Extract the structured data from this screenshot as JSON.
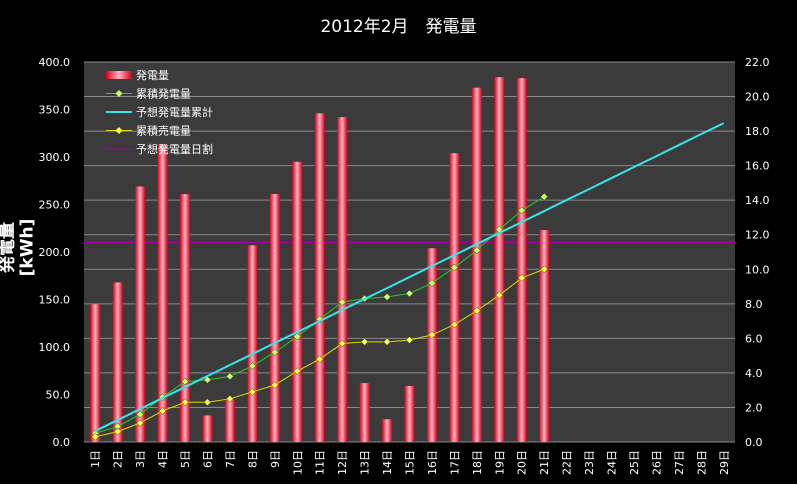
{
  "chart_data": {
    "type": "bar",
    "title": "2012年2月　発電量",
    "ylabel": "発電量[kWh]",
    "ylim": [
      0,
      400
    ],
    "y2lim": [
      0,
      22
    ],
    "y_ticks": [
      "0.0",
      "50.0",
      "100.0",
      "150.0",
      "200.0",
      "250.0",
      "300.0",
      "350.0",
      "400.0"
    ],
    "y2_ticks": [
      "0.0",
      "2.0",
      "4.0",
      "6.0",
      "8.0",
      "10.0",
      "12.0",
      "14.0",
      "16.0",
      "18.0",
      "20.0",
      "22.0"
    ],
    "grid": true,
    "legend_position": "top-left",
    "categories": [
      "1日",
      "2日",
      "3日",
      "4日",
      "5日",
      "6日",
      "7日",
      "8日",
      "9日",
      "10日",
      "11日",
      "12日",
      "13日",
      "14日",
      "15日",
      "16日",
      "17日",
      "18日",
      "19日",
      "20日",
      "21日",
      "22日",
      "23日",
      "24日",
      "25日",
      "26日",
      "27日",
      "28日",
      "29日"
    ],
    "series": [
      {
        "name": "発電量",
        "type": "bar",
        "axis": "left",
        "color": "#ff2040",
        "values": [
          145,
          168,
          269,
          313,
          261,
          28,
          45,
          207,
          261,
          295,
          346,
          342,
          62,
          24,
          59,
          204,
          304,
          373,
          384,
          383,
          223,
          null,
          null,
          null,
          null,
          null,
          null,
          null,
          null
        ]
      },
      {
        "name": "累積発電量",
        "type": "line-marker",
        "axis": "right",
        "color": "#22cc22",
        "marker_color": "#ccff66",
        "values": [
          0.5,
          0.9,
          1.6,
          2.6,
          3.5,
          3.6,
          3.8,
          4.4,
          5.2,
          6.1,
          7.1,
          8.1,
          8.3,
          8.4,
          8.6,
          9.2,
          10.1,
          11.1,
          12.3,
          13.4,
          14.2,
          null,
          null,
          null,
          null,
          null,
          null,
          null,
          null
        ]
      },
      {
        "name": "予想発電量累計",
        "type": "line",
        "axis": "right",
        "color": "#33e6ee",
        "values": [
          0.64,
          1.27,
          1.91,
          2.55,
          3.18,
          3.82,
          4.46,
          5.09,
          5.73,
          6.37,
          7.0,
          7.64,
          8.28,
          8.91,
          9.55,
          10.19,
          10.82,
          11.46,
          12.1,
          12.73,
          13.37,
          14.01,
          14.64,
          15.28,
          15.92,
          16.55,
          17.19,
          17.83,
          18.46
        ]
      },
      {
        "name": "累積売電量",
        "type": "line-marker",
        "axis": "right",
        "color": "#dddd00",
        "marker_color": "#ffff44",
        "values": [
          0.3,
          0.6,
          1.1,
          1.8,
          2.3,
          2.3,
          2.5,
          2.9,
          3.3,
          4.1,
          4.8,
          5.7,
          5.8,
          5.8,
          5.9,
          6.2,
          6.8,
          7.6,
          8.5,
          9.5,
          10.0,
          null,
          null,
          null,
          null,
          null,
          null,
          null,
          null
        ]
      },
      {
        "name": "予想発電量日割",
        "type": "hline",
        "axis": "left",
        "color": "#aa00aa",
        "value": 210
      }
    ]
  }
}
